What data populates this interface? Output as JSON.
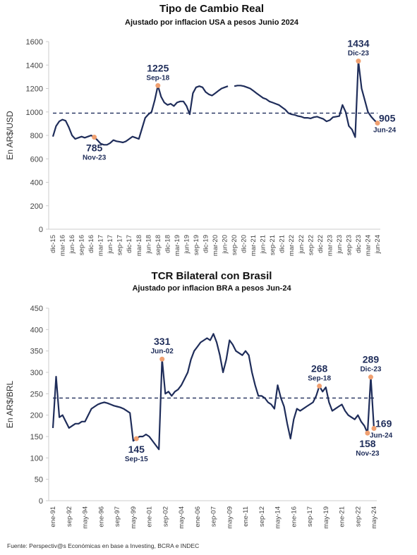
{
  "source": "Fuente: Perspectiv@s Económicas en base a Investing, BCRA e INDEC",
  "chart_data": [
    {
      "type": "line",
      "title": "Tipo de Cambio Real",
      "subtitle": "Ajustado por inflacion USA a pesos Junio 2024",
      "ylabel": "En AR$/USD",
      "color": "#1f2d5a",
      "hline": 990,
      "ylim": [
        0,
        1600
      ],
      "yticks": [
        0,
        200,
        400,
        600,
        800,
        1000,
        1200,
        1400,
        1600
      ],
      "categories": [
        "dic-15",
        null,
        null,
        "mar-16",
        null,
        null,
        "jun-16",
        null,
        null,
        "sep-16",
        null,
        null,
        "dic-16",
        null,
        null,
        "mar-17",
        null,
        null,
        "jun-17",
        null,
        null,
        "sep-17",
        null,
        null,
        "dic-17",
        null,
        null,
        "mar-18",
        null,
        null,
        "jun-18",
        null,
        null,
        "sep-18",
        null,
        null,
        "dic-18",
        null,
        null,
        "mar-19",
        null,
        null,
        "jun-19",
        null,
        null,
        "sep-19",
        null,
        null,
        "dic-19",
        null,
        null,
        "mar-20",
        null,
        null,
        "jun-20",
        null,
        null,
        "sep-20",
        null,
        null,
        "dic-20",
        null,
        null,
        "mar-21",
        null,
        null,
        "jun-21",
        null,
        null,
        "sep-21",
        null,
        null,
        "dic-21",
        null,
        null,
        "mar-22",
        null,
        null,
        "jun-22",
        null,
        null,
        "sep-22",
        null,
        null,
        "dic-22",
        null,
        null,
        "mar-23",
        null,
        null,
        "jun-23",
        null,
        null,
        "sep-23",
        null,
        null,
        "dic-23",
        null,
        null,
        "mar-24",
        null,
        null,
        "jun-24"
      ],
      "values": [
        790,
        880,
        920,
        935,
        925,
        870,
        800,
        770,
        780,
        790,
        780,
        790,
        800,
        785,
        760,
        730,
        720,
        720,
        735,
        760,
        750,
        745,
        740,
        750,
        770,
        790,
        780,
        770,
        860,
        950,
        980,
        1000,
        1100,
        1225,
        1130,
        1080,
        1060,
        1070,
        1050,
        1080,
        1090,
        1090,
        1050,
        980,
        1160,
        1210,
        1220,
        1210,
        1170,
        1150,
        1140,
        1160,
        1180,
        1200,
        1210,
        1220,
        null,
        1220,
        1225,
        1225,
        1220,
        1210,
        1200,
        1180,
        1160,
        1140,
        1120,
        1110,
        1090,
        1080,
        1070,
        1060,
        1040,
        1020,
        990,
        980,
        975,
        965,
        960,
        950,
        950,
        945,
        955,
        960,
        950,
        940,
        920,
        930,
        955,
        960,
        965,
        1060,
        1000,
        880,
        850,
        785,
        1434,
        1200,
        1100,
        1000,
        960,
        930,
        905
      ],
      "annotations": [
        {
          "value": 1225,
          "label": "Sep-18"
        },
        {
          "value": 1434,
          "label": "Dic-23"
        },
        {
          "value": 785,
          "label": "Nov-23"
        },
        {
          "value": 905,
          "label": "Jun-24"
        }
      ]
    },
    {
      "type": "line",
      "title": "TCR Bilateral con Brasil",
      "subtitle": "Ajustado por inflacion BRA a pesos Jun-24",
      "ylabel": "En AR$/BRL",
      "color": "#1f2d5a",
      "hline": 240,
      "ylim": [
        0,
        450
      ],
      "yticks": [
        0,
        50,
        100,
        150,
        200,
        250,
        300,
        350,
        400,
        450
      ],
      "categories": [
        "ene-91",
        null,
        null,
        null,
        null,
        "sep-92",
        null,
        null,
        null,
        null,
        "may-94",
        null,
        null,
        null,
        null,
        "ene-96",
        null,
        null,
        null,
        null,
        "sep-97",
        null,
        null,
        null,
        null,
        "may-99",
        null,
        null,
        null,
        null,
        "ene-01",
        null,
        null,
        null,
        null,
        "sep-02",
        null,
        null,
        null,
        null,
        "may-04",
        null,
        null,
        null,
        null,
        "ene-06",
        null,
        null,
        null,
        null,
        "sep-07",
        null,
        null,
        null,
        null,
        "may-09",
        null,
        null,
        null,
        null,
        "ene-11",
        null,
        null,
        null,
        null,
        "sep-12",
        null,
        null,
        null,
        null,
        "may-14",
        null,
        null,
        null,
        null,
        "ene-16",
        null,
        null,
        null,
        null,
        "sep-17",
        null,
        null,
        null,
        null,
        "may-19",
        null,
        null,
        null,
        null,
        "ene-21",
        null,
        null,
        null,
        null,
        "sep-22",
        null,
        null,
        null,
        null,
        "may-24"
      ],
      "values": [
        170,
        290,
        195,
        200,
        185,
        170,
        175,
        180,
        180,
        185,
        185,
        200,
        215,
        220,
        225,
        228,
        230,
        228,
        225,
        222,
        220,
        218,
        215,
        210,
        205,
        140,
        145,
        150,
        150,
        155,
        150,
        140,
        130,
        120,
        331,
        250,
        255,
        245,
        255,
        260,
        270,
        285,
        300,
        330,
        350,
        360,
        370,
        375,
        380,
        375,
        390,
        370,
        340,
        300,
        330,
        375,
        365,
        350,
        345,
        340,
        350,
        340,
        300,
        270,
        245,
        245,
        240,
        230,
        225,
        215,
        270,
        240,
        220,
        180,
        145,
        190,
        215,
        210,
        215,
        220,
        225,
        230,
        245,
        268,
        255,
        265,
        230,
        210,
        215,
        220,
        225,
        210,
        200,
        195,
        190,
        200,
        185,
        175,
        158,
        289,
        169
      ],
      "annotations": [
        {
          "value": 331,
          "label": "Jun-02"
        },
        {
          "value": 145,
          "label": "Sep-15"
        },
        {
          "value": 268,
          "label": "Sep-18"
        },
        {
          "value": 289,
          "label": "Dic-23"
        },
        {
          "value": 158,
          "label": "Nov-23"
        },
        {
          "value": 169,
          "label": "Jun-24"
        }
      ]
    }
  ]
}
